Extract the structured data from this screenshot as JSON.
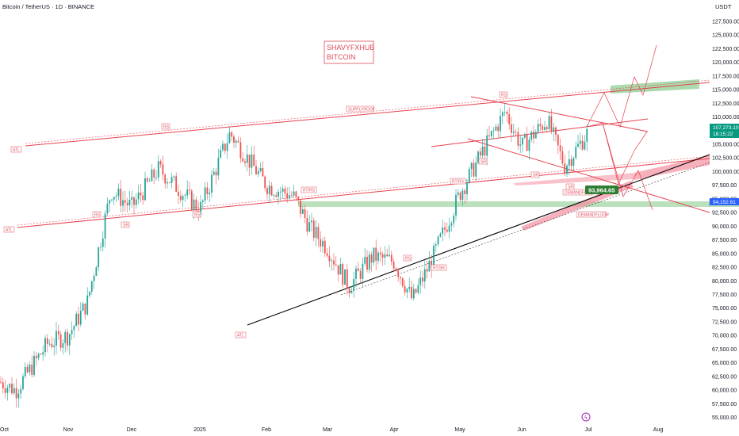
{
  "header": {
    "symbol_line": "Bitcoin / TetherUS · 1D · BINANCE",
    "currency": "USDT"
  },
  "watermark": {
    "line1": "SHAVYFXHUB",
    "line2": "BITCOIN"
  },
  "colors": {
    "bull": "#26a69a",
    "bear": "#ef5350",
    "channel": "#e8404f",
    "trendline": "#000000",
    "zone_green": "#66bb6a",
    "zone_pink": "#f48fa0",
    "price_tag_green": "#089981",
    "price_tag_blue": "#2962ff"
  },
  "chart_data": {
    "type": "candlestick",
    "symbol": "Bitcoin / TetherUS",
    "interval": "1D",
    "exchange": "BINANCE",
    "x_axis_labels": [
      "Oct",
      "Nov",
      "Dec",
      "2025",
      "Feb",
      "Mar",
      "Apr",
      "May",
      "Jun",
      "Jul",
      "Aug"
    ],
    "y_axis_labels": [
      "127,500.00",
      "125,000.00",
      "122,500.00",
      "120,000.00",
      "117,500.00",
      "115,000.00",
      "112,500.00",
      "110,000.00",
      "107,500.00",
      "105,000.00",
      "102,500.00",
      "100,000.00",
      "97,500.00",
      "95,000.00",
      "92,500.00",
      "90,000.00",
      "87,500.00",
      "85,000.00",
      "82,500.00",
      "80,000.00",
      "77,500.00",
      "75,000.00",
      "72,500.00",
      "70,000.00",
      "67,500.00",
      "65,000.00",
      "62,500.00",
      "60,000.00",
      "57,500.00",
      "55,000.00"
    ],
    "ylim": [
      54500,
      128500
    ],
    "monthly_closes": [
      {
        "month": "Oct",
        "value": 70000
      },
      {
        "month": "Nov",
        "value": 96500
      },
      {
        "month": "Dec",
        "value": 93500
      },
      {
        "month": "2025",
        "value": 102500
      },
      {
        "month": "Feb",
        "value": 84500
      },
      {
        "month": "Mar",
        "value": 82500
      },
      {
        "month": "Apr",
        "value": 94500
      },
      {
        "month": "May",
        "value": 104500
      },
      {
        "month": "Jun",
        "value": 107200
      }
    ],
    "price_tags": {
      "last_price": "107,273.10",
      "countdown": "18:15:22",
      "support_level": "94,152.61",
      "demand_marker": "93,964.65"
    },
    "annotations": [
      "SUPPLYROOF",
      "DEMANDFLOOR",
      "DEMANDFLOOR",
      "RT/RS",
      "RT/RS",
      "RT/SR",
      "ATL",
      "ATL",
      "ATL",
      "SR",
      "SR",
      "SR",
      "RS",
      "RS",
      "RS",
      "RS",
      "RS",
      "SR"
    ]
  }
}
